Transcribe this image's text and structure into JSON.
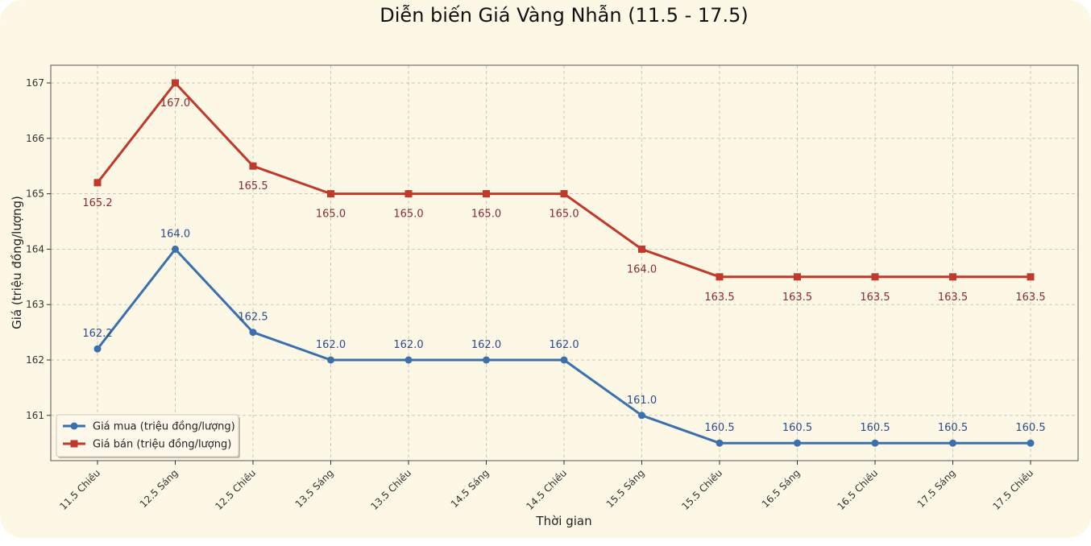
{
  "chart_data": {
    "type": "line",
    "title": "Diễn biến Giá Vàng Nhẫn (11.5 - 17.5)",
    "xlabel": "Thời gian",
    "ylabel": "Giá (triệu đồng/lượng)",
    "categories": [
      "11.5 Chiều",
      "12.5 Sáng",
      "12.5 Chiều",
      "13.5 Sáng",
      "13.5 Chiều",
      "14.5 Sáng",
      "14.5 Chiều",
      "15.5 Sáng",
      "15.5 Chiều",
      "16.5 Sáng",
      "16.5 Chiều",
      "17.5 Sáng",
      "17.5 Chiều"
    ],
    "yticks": [
      161,
      162,
      163,
      164,
      165,
      166,
      167
    ],
    "ylim": [
      160.25,
      167.32
    ],
    "grid": true,
    "legend_position": "lower-left",
    "series": [
      {
        "name": "Giá mua (triệu đồng/lượng)",
        "color": "#3a70ad",
        "marker": "circle",
        "values": [
          162.2,
          164.0,
          162.5,
          162.0,
          162.0,
          162.0,
          162.0,
          161.0,
          160.5,
          160.5,
          160.5,
          160.5,
          160.5
        ],
        "labels": [
          "162.2",
          "164.0",
          "162.5",
          "162.0",
          "162.0",
          "162.0",
          "162.0",
          "161.0",
          "160.5",
          "160.5",
          "160.5",
          "160.5",
          "160.5"
        ],
        "label_color": "#2c4a8e"
      },
      {
        "name": "Giá bán (triệu đồng/lượng)",
        "color": "#c0392b",
        "marker": "square",
        "values": [
          165.2,
          167.0,
          165.5,
          165.0,
          165.0,
          165.0,
          165.0,
          164.0,
          163.5,
          163.5,
          163.5,
          163.5,
          163.5
        ],
        "labels": [
          "165.2",
          "167.0",
          "165.5",
          "165.0",
          "165.0",
          "165.0",
          "165.0",
          "164.0",
          "163.5",
          "163.5",
          "163.5",
          "163.5",
          "163.5"
        ],
        "label_color": "#8b2a2a"
      }
    ]
  }
}
